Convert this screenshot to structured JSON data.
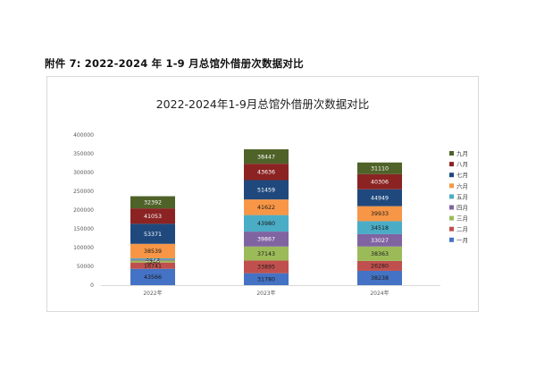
{
  "caption": "附件 7: 2022-2024 年 1-9 月总馆外借册次数据对比",
  "chart_data": {
    "type": "bar",
    "stacked": true,
    "title": "2022-2024年1-9月总馆外借册次数据对比",
    "xlabel": "",
    "ylabel": "",
    "categories": [
      "2022年",
      "2023年",
      "2024年"
    ],
    "ylim": [
      0,
      400000
    ],
    "yticks": [
      0,
      50000,
      100000,
      150000,
      200000,
      250000,
      300000,
      350000,
      400000
    ],
    "grid": false,
    "legend_position": "right",
    "series": [
      {
        "name": "一月",
        "color": "#4472C4",
        "values": [
          43566,
          31780,
          38238
        ]
      },
      {
        "name": "二月",
        "color": "#C0504D",
        "values": [
          16741,
          33895,
          26280
        ]
      },
      {
        "name": "三月",
        "color": "#9BBB59",
        "values": [
          5240,
          37143,
          38363
        ]
      },
      {
        "name": "四月",
        "color": "#8064A2",
        "values": [
          2790,
          39867,
          33027
        ]
      },
      {
        "name": "五月",
        "color": "#4BACC6",
        "values": [
          3173,
          43980,
          34518
        ]
      },
      {
        "name": "六月",
        "color": "#F79646",
        "values": [
          38539,
          41622,
          39933
        ]
      },
      {
        "name": "七月",
        "color": "#1F497D",
        "values": [
          53371,
          51459,
          44949
        ]
      },
      {
        "name": "八月",
        "color": "#8B2323",
        "values": [
          41053,
          43636,
          40306
        ]
      },
      {
        "name": "九月",
        "color": "#4F6228",
        "values": [
          32392,
          38447,
          31110
        ]
      }
    ],
    "data_labels": [
      [
        "43566",
        "31780",
        "38238"
      ],
      [
        "16741",
        "33895",
        "26280"
      ],
      [
        "5240",
        "37143",
        "38363"
      ],
      [
        "2790",
        "39867",
        "33027"
      ],
      [
        "3173",
        "43980",
        "34518"
      ],
      [
        "38539",
        "41622",
        "39933"
      ],
      [
        "53371",
        "51459",
        "44949"
      ],
      [
        "41053",
        "43636",
        "40306"
      ],
      [
        "32392",
        "38447",
        "31110"
      ]
    ]
  }
}
